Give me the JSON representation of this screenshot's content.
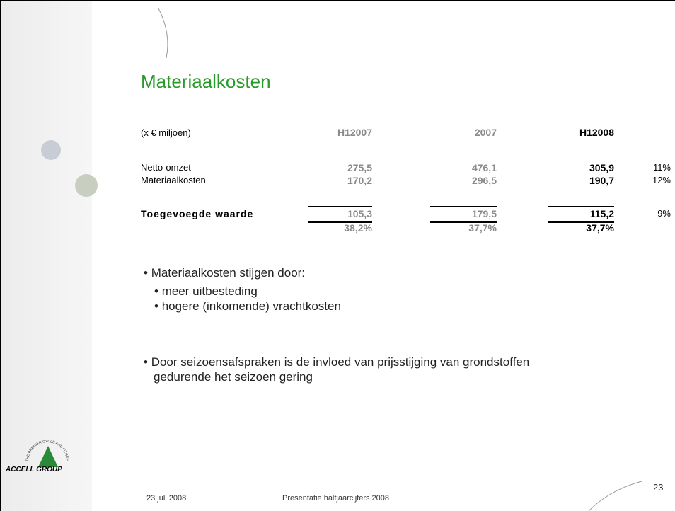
{
  "title": "Materiaalkosten",
  "table": {
    "header": [
      "(x € miljoen)",
      "H12007",
      "2007",
      "H12008"
    ],
    "rows": [
      [
        "Netto-omzet",
        "275,5",
        "476,1",
        "305,9",
        "11%"
      ],
      [
        "Materiaalkosten",
        "170,2",
        "296,5",
        "190,7",
        "12%"
      ],
      [
        "Toegevoegde waarde",
        "105,3",
        "179,5",
        "115,2",
        "9%"
      ]
    ],
    "margin": [
      "38,2%",
      "37,7%",
      "37,7%"
    ]
  },
  "bullets": [
    {
      "text": "Materiaalkosten stijgen door:",
      "sub": [
        "meer uitbesteding",
        "hogere (inkomende) vrachtkosten"
      ]
    },
    {
      "text": "Door seizoensafspraken is de invloed van prijsstijging van grondstoffen",
      "cont": "gedurende het seizoen gering"
    }
  ],
  "logo": {
    "name": "ACCELL GROUP",
    "tagline": "THE PREMIER CYCLE AND FITNESS GROUP"
  },
  "footer": {
    "date": "23 juli 2008",
    "event": "Presentatie halfjaarcijfers 2008",
    "page": "23"
  }
}
